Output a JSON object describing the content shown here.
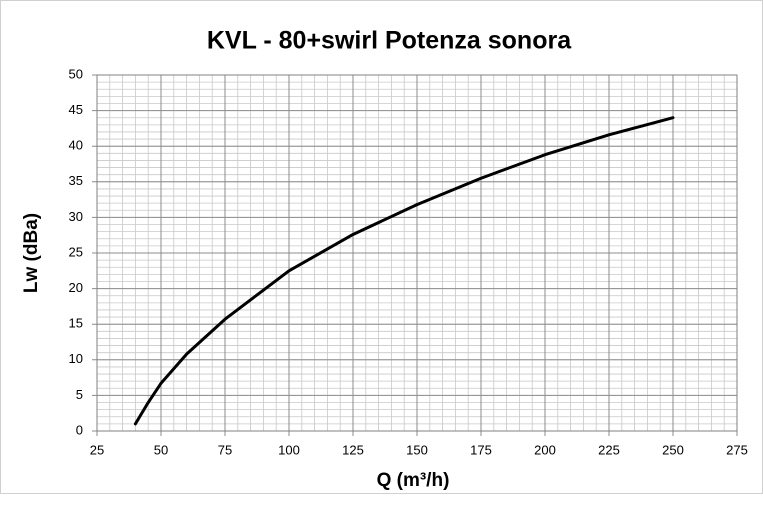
{
  "chart_data": {
    "type": "line",
    "title": "KVL - 80+swirl Potenza sonora",
    "x_label": "Q (m³/h)",
    "y_label": "Lw (dBa)",
    "x": [
      40,
      45,
      50,
      60,
      75,
      100,
      125,
      150,
      175,
      200,
      225,
      250
    ],
    "series": [
      {
        "name": "Lw",
        "color": "#000000",
        "values": [
          1,
          4,
          6.7,
          10.8,
          15.7,
          22.5,
          27.6,
          31.8,
          35.5,
          38.8,
          41.6,
          44
        ]
      }
    ],
    "xlim": [
      25,
      275
    ],
    "xticks": [
      25,
      50,
      75,
      100,
      125,
      150,
      175,
      200,
      225,
      250,
      275
    ],
    "ylim": [
      0,
      50
    ],
    "yticks": [
      0,
      5,
      10,
      15,
      20,
      25,
      30,
      35,
      40,
      45,
      50
    ],
    "grid": true,
    "minor_grid": {
      "x": 5,
      "y": 1
    }
  }
}
